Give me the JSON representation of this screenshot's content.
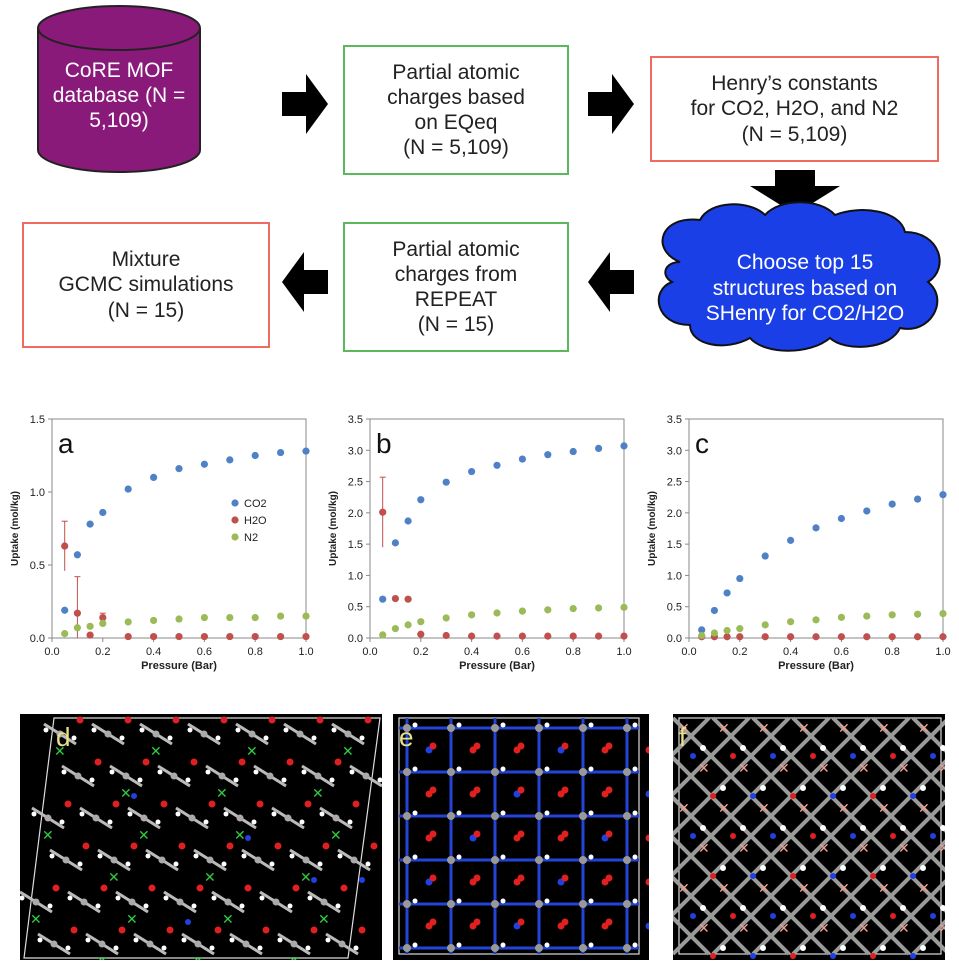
{
  "flow": {
    "database": {
      "line1": "CoRE MOF",
      "line2": "database",
      "line3": "(N = 5,109)"
    },
    "eqeq": {
      "line1": "Partial atomic",
      "line2": "charges based",
      "line3": "on EQeq",
      "line4": "(N = 5,109)"
    },
    "henry": {
      "line1": "Henry’s constants",
      "line2": "for CO2, H2O, and N2",
      "line3": "(N = 5,109)"
    },
    "choose": {
      "line1": "Choose top 15",
      "line2": "structures based on",
      "line3": "SHenry for CO2/H2O"
    },
    "repeat": {
      "line1": "Partial atomic",
      "line2": "charges from",
      "line3": "REPEAT",
      "line4": "(N = 15)"
    },
    "mixture": {
      "line1": "Mixture",
      "line2": "GCMC simulations",
      "line3": "(N = 15)"
    },
    "colors": {
      "cylinder": "#8a1a7a",
      "cloud": "#1a3fe6",
      "arrow": "#000000",
      "green_border": "#5cb85c",
      "red_border": "#ef6b62"
    }
  },
  "chart_data": [
    {
      "type": "scatter",
      "panel_label": "a",
      "xlabel": "Pressure (Bar)",
      "ylabel": "Uptake (mol/kg)",
      "xlim": [
        0,
        1.0
      ],
      "ylim": [
        0,
        1.5
      ],
      "xticks": [
        "0.0",
        "0.2",
        "0.4",
        "0.6",
        "0.8",
        "1.0"
      ],
      "yticks": [
        "0.0",
        "0.5",
        "1.0",
        "1.5"
      ],
      "legend": {
        "position": "right-middle",
        "entries": [
          "CO2",
          "H2O",
          "N2"
        ]
      },
      "series": [
        {
          "name": "CO2",
          "color": "#4f81c7",
          "x": [
            0.05,
            0.1,
            0.15,
            0.2,
            0.3,
            0.4,
            0.5,
            0.6,
            0.7,
            0.8,
            0.9,
            1.0
          ],
          "y": [
            0.19,
            0.57,
            0.78,
            0.86,
            1.02,
            1.1,
            1.16,
            1.19,
            1.22,
            1.25,
            1.27,
            1.28
          ]
        },
        {
          "name": "H2O",
          "color": "#c0504d",
          "x": [
            0.05,
            0.1,
            0.15,
            0.2,
            0.3,
            0.4,
            0.5,
            0.6,
            0.7,
            0.8,
            0.9,
            1.0
          ],
          "y": [
            0.63,
            0.17,
            0.02,
            0.14,
            0.01,
            0.01,
            0.01,
            0.01,
            0.01,
            0.01,
            0.01,
            0.01
          ],
          "err": [
            0.17,
            0.25,
            0,
            0.03,
            0,
            0,
            0,
            0,
            0,
            0,
            0,
            0
          ]
        },
        {
          "name": "N2",
          "color": "#9bbb59",
          "x": [
            0.05,
            0.1,
            0.15,
            0.2,
            0.3,
            0.4,
            0.5,
            0.6,
            0.7,
            0.8,
            0.9,
            1.0
          ],
          "y": [
            0.03,
            0.07,
            0.08,
            0.1,
            0.11,
            0.12,
            0.13,
            0.14,
            0.14,
            0.14,
            0.15,
            0.15
          ]
        }
      ]
    },
    {
      "type": "scatter",
      "panel_label": "b",
      "xlabel": "Pressure (Bar)",
      "ylabel": "Uptake (mol/kg)",
      "xlim": [
        0,
        1.0
      ],
      "ylim": [
        0,
        3.5
      ],
      "xticks": [
        "0.0",
        "0.2",
        "0.4",
        "0.6",
        "0.8",
        "1.0"
      ],
      "yticks": [
        "0.0",
        "0.5",
        "1.0",
        "1.5",
        "2.0",
        "2.5",
        "3.0",
        "3.5"
      ],
      "series": [
        {
          "name": "CO2",
          "color": "#4f81c7",
          "x": [
            0.05,
            0.1,
            0.15,
            0.2,
            0.3,
            0.4,
            0.5,
            0.6,
            0.7,
            0.8,
            0.9,
            1.0
          ],
          "y": [
            0.62,
            1.52,
            1.87,
            2.21,
            2.49,
            2.66,
            2.76,
            2.86,
            2.93,
            2.98,
            3.03,
            3.07
          ]
        },
        {
          "name": "H2O",
          "color": "#c0504d",
          "x": [
            0.05,
            0.1,
            0.15,
            0.2,
            0.3,
            0.4,
            0.5,
            0.6,
            0.7,
            0.8,
            0.9,
            1.0
          ],
          "y": [
            2.01,
            0.63,
            0.62,
            0.06,
            0.04,
            0.03,
            0.03,
            0.03,
            0.03,
            0.03,
            0.03,
            0.03
          ],
          "err": [
            0.56,
            0,
            0,
            0,
            0,
            0,
            0,
            0,
            0,
            0,
            0,
            0
          ]
        },
        {
          "name": "N2",
          "color": "#9bbb59",
          "x": [
            0.05,
            0.1,
            0.15,
            0.2,
            0.3,
            0.4,
            0.5,
            0.6,
            0.7,
            0.8,
            0.9,
            1.0
          ],
          "y": [
            0.05,
            0.15,
            0.21,
            0.26,
            0.32,
            0.37,
            0.4,
            0.43,
            0.45,
            0.47,
            0.48,
            0.49
          ]
        }
      ]
    },
    {
      "type": "scatter",
      "panel_label": "c",
      "xlabel": "Pressure (Bar)",
      "ylabel": "Uptake (mol/kg)",
      "xlim": [
        0,
        1.0
      ],
      "ylim": [
        0,
        3.5
      ],
      "xticks": [
        "0.0",
        "0.2",
        "0.4",
        "0.6",
        "0.8",
        "1.0"
      ],
      "yticks": [
        "0.0",
        "0.5",
        "1.0",
        "1.5",
        "2.0",
        "2.5",
        "3.0",
        "3.5"
      ],
      "series": [
        {
          "name": "CO2",
          "color": "#4f81c7",
          "x": [
            0.05,
            0.1,
            0.15,
            0.2,
            0.3,
            0.4,
            0.5,
            0.6,
            0.7,
            0.8,
            0.9,
            1.0
          ],
          "y": [
            0.13,
            0.44,
            0.72,
            0.95,
            1.31,
            1.56,
            1.76,
            1.91,
            2.03,
            2.14,
            2.22,
            2.29
          ]
        },
        {
          "name": "H2O",
          "color": "#c0504d",
          "x": [
            0.05,
            0.1,
            0.15,
            0.2,
            0.3,
            0.4,
            0.5,
            0.6,
            0.7,
            0.8,
            0.9,
            1.0
          ],
          "y": [
            0.02,
            0.02,
            0.02,
            0.02,
            0.02,
            0.02,
            0.02,
            0.02,
            0.02,
            0.02,
            0.02,
            0.02
          ]
        },
        {
          "name": "N2",
          "color": "#9bbb59",
          "x": [
            0.05,
            0.1,
            0.15,
            0.2,
            0.3,
            0.4,
            0.5,
            0.6,
            0.7,
            0.8,
            0.9,
            1.0
          ],
          "y": [
            0.04,
            0.08,
            0.12,
            0.15,
            0.21,
            0.26,
            0.29,
            0.33,
            0.35,
            0.37,
            0.38,
            0.39
          ]
        }
      ]
    }
  ],
  "structures": [
    {
      "label": "d",
      "atoms": {
        "C": "#a9a9a9",
        "H": "#ffffff",
        "O": "#e02020",
        "Zn": "#2ecc40",
        "N": "#2040e0"
      }
    },
    {
      "label": "e"
    },
    {
      "label": "f"
    }
  ]
}
